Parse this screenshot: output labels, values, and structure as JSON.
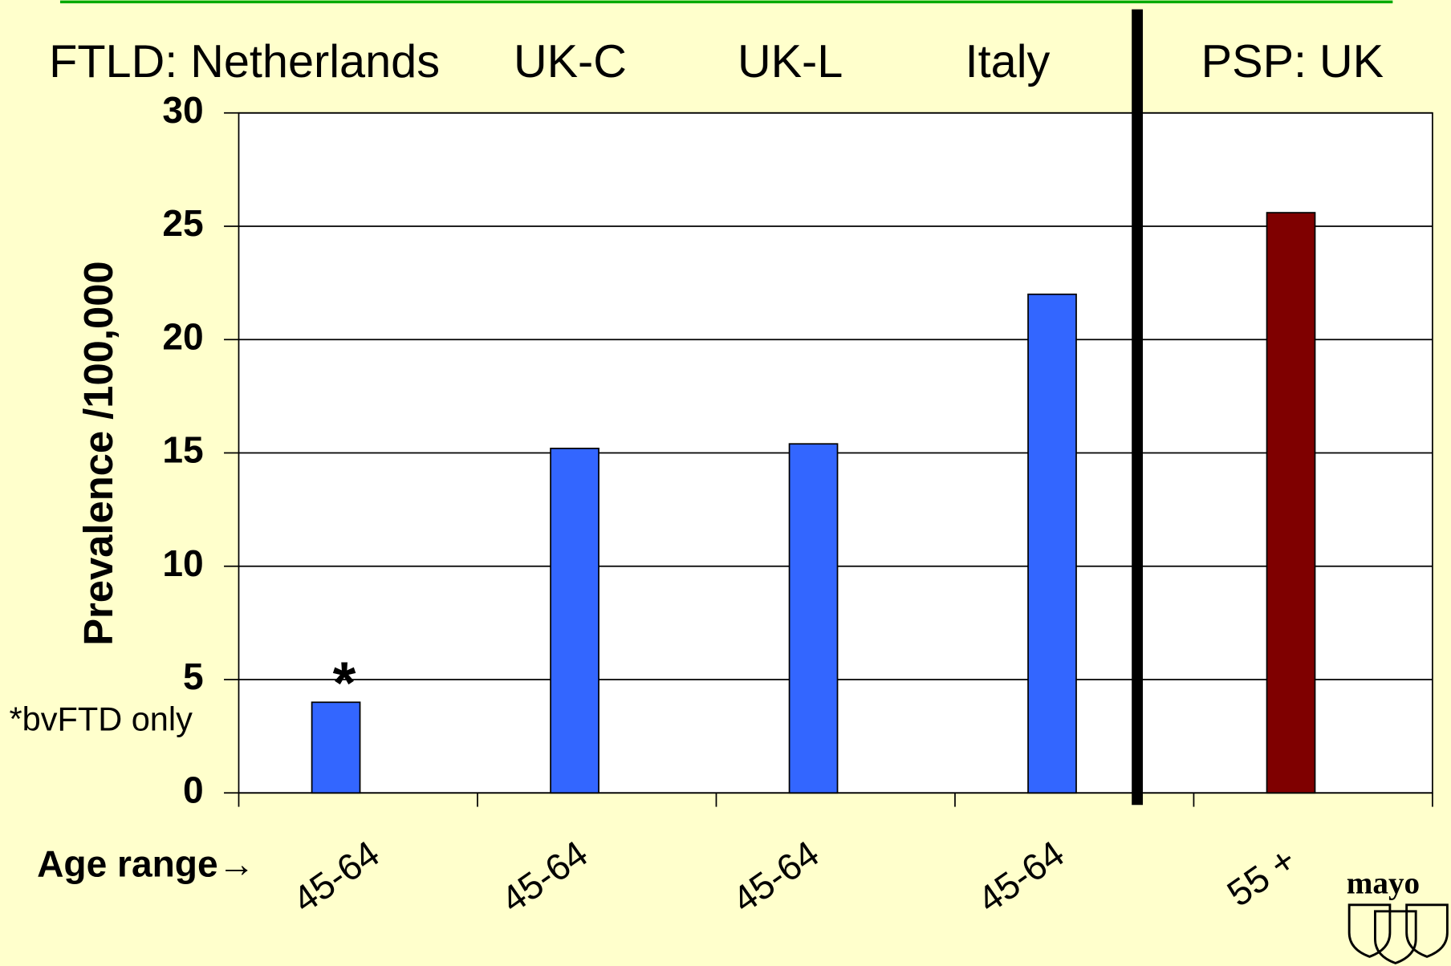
{
  "chart_data": {
    "type": "bar",
    "group_labels": [
      "FTLD: Netherlands",
      "UK-C",
      "UK-L",
      "Italy",
      "PSP: UK"
    ],
    "y_label": "Prevalence /100,000",
    "x_label": "Age range→",
    "categories": [
      "45-64",
      "45-64",
      "45-64",
      "45-64",
      "55 +"
    ],
    "values": [
      4,
      15.2,
      15.4,
      22,
      25.6
    ],
    "colors": [
      "#3366ff",
      "#3366ff",
      "#3366ff",
      "#3366ff",
      "#7f0000"
    ],
    "ylim": [
      0,
      30
    ],
    "yticks": [
      0,
      5,
      10,
      15,
      20,
      25,
      30
    ],
    "grid": true,
    "annotations": [
      "*",
      "*bvFTD only"
    ],
    "logo": "mayo"
  }
}
